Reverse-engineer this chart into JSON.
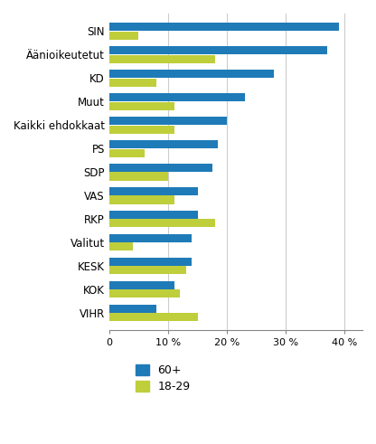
{
  "categories": [
    "SIN",
    "Äänioikeutetut",
    "KD",
    "Muut",
    "Kaikki ehdokkaat",
    "PS",
    "SDP",
    "VAS",
    "RKP",
    "Valitut",
    "KESK",
    "KOK",
    "VIHR"
  ],
  "blue_values": [
    39,
    37,
    28,
    23,
    20,
    18.5,
    17.5,
    15,
    15,
    14,
    14,
    11,
    8
  ],
  "green_values": [
    5,
    18,
    8,
    11,
    11,
    6,
    10,
    11,
    18,
    4,
    13,
    12,
    15
  ],
  "blue_color": "#1F7BB8",
  "green_color": "#BFCE3B",
  "legend_labels": [
    "60+",
    "18-29"
  ],
  "xticks": [
    0,
    10,
    20,
    30,
    40
  ],
  "xtick_labels": [
    "0",
    "10 %",
    "20 %",
    "30 %",
    "40 %"
  ],
  "xlim": [
    0,
    43
  ],
  "background_color": "#ffffff",
  "grid_color": "#cccccc",
  "bar_height": 0.35,
  "bar_gap": 0.02
}
